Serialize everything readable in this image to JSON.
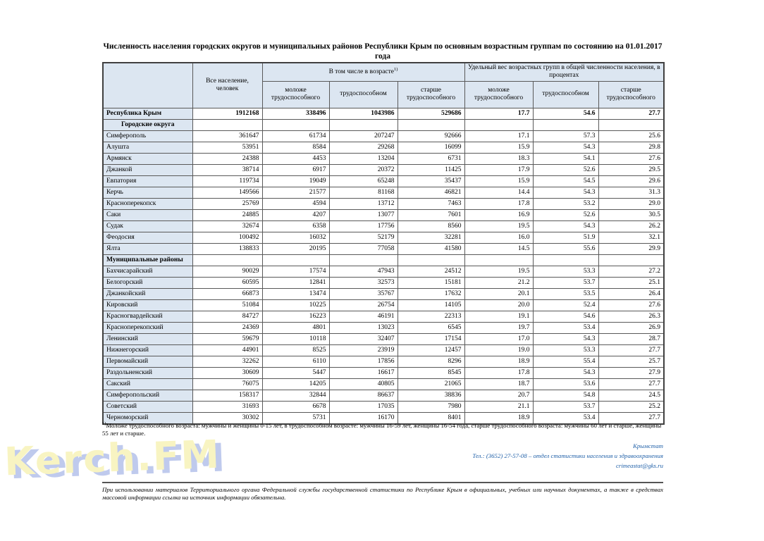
{
  "page": {
    "title": "Численность населения городских округов и муниципальных районов Республики Крым по основным возрастным группам по состоянию на 01.01.2017 года"
  },
  "table": {
    "header": {
      "all_population": "Все население, человек",
      "in_age_group": "В том числе в возрасте",
      "in_age_sup": "1)",
      "share_group": "Удельный вес возрастных групп в общей численности населения, в процентах",
      "sub": [
        "моложе трудоспособного",
        "трудоспособном",
        "старше трудоспособного",
        "моложе трудоспособного",
        "трудоспособном",
        "старше трудоспособного"
      ]
    },
    "total_row": {
      "label": "Республика Крым",
      "values": [
        "1912168",
        "338496",
        "1043986",
        "529686",
        "17.7",
        "54.6",
        "27.7"
      ]
    },
    "sections": [
      {
        "label": "Городские округа",
        "align": "center",
        "rows": [
          {
            "label": "Симферополь",
            "values": [
              "361647",
              "61734",
              "207247",
              "92666",
              "17.1",
              "57.3",
              "25.6"
            ]
          },
          {
            "label": "Алушта",
            "values": [
              "53951",
              "8584",
              "29268",
              "16099",
              "15.9",
              "54.3",
              "29.8"
            ]
          },
          {
            "label": "Армянск",
            "values": [
              "24388",
              "4453",
              "13204",
              "6731",
              "18.3",
              "54.1",
              "27.6"
            ]
          },
          {
            "label": "Джанкой",
            "values": [
              "38714",
              "6917",
              "20372",
              "11425",
              "17.9",
              "52.6",
              "29.5"
            ]
          },
          {
            "label": "Евпатория",
            "values": [
              "119734",
              "19049",
              "65248",
              "35437",
              "15.9",
              "54.5",
              "29.6"
            ]
          },
          {
            "label": "Керчь",
            "values": [
              "149566",
              "21577",
              "81168",
              "46821",
              "14.4",
              "54.3",
              "31.3"
            ]
          },
          {
            "label": "Красноперекопск",
            "values": [
              "25769",
              "4594",
              "13712",
              "7463",
              "17.8",
              "53.2",
              "29.0"
            ]
          },
          {
            "label": "Саки",
            "values": [
              "24885",
              "4207",
              "13077",
              "7601",
              "16.9",
              "52.6",
              "30.5"
            ]
          },
          {
            "label": "Судак",
            "values": [
              "32674",
              "6358",
              "17756",
              "8560",
              "19.5",
              "54.3",
              "26.2"
            ]
          },
          {
            "label": "Феодосия",
            "values": [
              "100492",
              "16032",
              "52179",
              "32281",
              "16.0",
              "51.9",
              "32.1"
            ]
          },
          {
            "label": "Ялта",
            "values": [
              "138833",
              "20195",
              "77058",
              "41580",
              "14.5",
              "55.6",
              "29.9"
            ]
          }
        ]
      },
      {
        "label": "Муниципальные районы",
        "align": "left",
        "rows": [
          {
            "label": "Бахчисарайский",
            "values": [
              "90029",
              "17574",
              "47943",
              "24512",
              "19.5",
              "53.3",
              "27.2"
            ]
          },
          {
            "label": "Белогорский",
            "values": [
              "60595",
              "12841",
              "32573",
              "15181",
              "21.2",
              "53.7",
              "25.1"
            ]
          },
          {
            "label": "Джанкойский",
            "values": [
              "66873",
              "13474",
              "35767",
              "17632",
              "20.1",
              "53.5",
              "26.4"
            ]
          },
          {
            "label": "Кировский",
            "values": [
              "51084",
              "10225",
              "26754",
              "14105",
              "20.0",
              "52.4",
              "27.6"
            ]
          },
          {
            "label": "Красногвардейский",
            "values": [
              "84727",
              "16223",
              "46191",
              "22313",
              "19.1",
              "54.6",
              "26.3"
            ]
          },
          {
            "label": "Красноперекопский",
            "values": [
              "24369",
              "4801",
              "13023",
              "6545",
              "19.7",
              "53.4",
              "26.9"
            ]
          },
          {
            "label": "Ленинский",
            "values": [
              "59679",
              "10118",
              "32407",
              "17154",
              "17.0",
              "54.3",
              "28.7"
            ]
          },
          {
            "label": "Нижнегорский",
            "values": [
              "44901",
              "8525",
              "23919",
              "12457",
              "19.0",
              "53.3",
              "27.7"
            ]
          },
          {
            "label": "Первомайский",
            "values": [
              "32262",
              "6110",
              "17856",
              "8296",
              "18.9",
              "55.4",
              "25.7"
            ]
          },
          {
            "label": "Раздольненский",
            "values": [
              "30609",
              "5447",
              "16617",
              "8545",
              "17.8",
              "54.3",
              "27.9"
            ]
          },
          {
            "label": "Сакский",
            "values": [
              "76075",
              "14205",
              "40805",
              "21065",
              "18.7",
              "53.6",
              "27.7"
            ]
          },
          {
            "label": "Симферопольский",
            "values": [
              "158317",
              "32844",
              "86637",
              "38836",
              "20.7",
              "54.8",
              "24.5"
            ]
          },
          {
            "label": "Советский",
            "values": [
              "31693",
              "6678",
              "17035",
              "7980",
              "21.1",
              "53.7",
              "25.2"
            ]
          },
          {
            "label": "Черноморский",
            "values": [
              "30302",
              "5731",
              "16170",
              "8401",
              "18.9",
              "53.4",
              "27.7"
            ]
          }
        ]
      }
    ]
  },
  "footnote": {
    "sup": "1)",
    "text": "Моложе  трудоспособного возраста: мужчины и женщины 0-15 лет, в трудоспособном возрасте: мужчины 16-59 лет, женщины 16-54 года, старше трудоспособного возраста: мужчины 60 лет и старше, женщины 55 лет и старше."
  },
  "contact": {
    "org": "Крымстат",
    "phone": "Тел.: (3652) 27-57-08 – отдел статистики населения и здравоохранения",
    "email": "crimeastat@gks.ru"
  },
  "disclaimer": "При использовании материалов Территориального органа Федеральной службы государственной статистики по Республике Крым в официальных, учебных или научных документах, а также в средствах массовой информации ссылка на источник информации обязательна.",
  "watermark": "Kerch.FM",
  "colors": {
    "cell_fill": "#dce6f1",
    "border": "#595959",
    "contact_blue": "#2060a8",
    "watermark_yellow": "#f8f3ba",
    "watermark_shadow_blue": "#b7c3eb"
  }
}
